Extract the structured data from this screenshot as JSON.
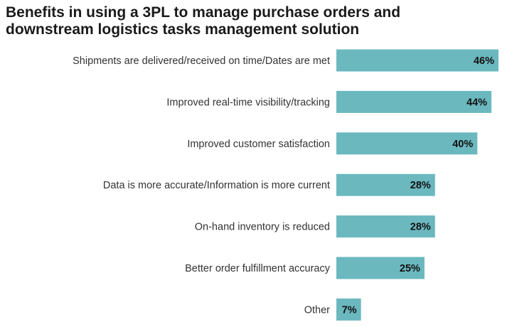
{
  "chart_data": {
    "type": "bar",
    "orientation": "horizontal",
    "title": "Benefits in using a 3PL to manage purchase orders and downstream logistics tasks management solution",
    "categories": [
      "Shipments are delivered/received on time/Dates are met",
      "Improved real-time visibility/tracking",
      "Improved customer satisfaction",
      "Data is more accurate/Information is more current",
      "On-hand inventory is reduced",
      "Better order fulfillment accuracy",
      "Other"
    ],
    "values": [
      46,
      44,
      40,
      28,
      28,
      25,
      7
    ],
    "value_labels": [
      "46%",
      "44%",
      "40%",
      "28%",
      "28%",
      "25%",
      "7%"
    ],
    "unit": "%",
    "bar_color": "#6bb8bf",
    "grid": false,
    "legend": "none"
  }
}
